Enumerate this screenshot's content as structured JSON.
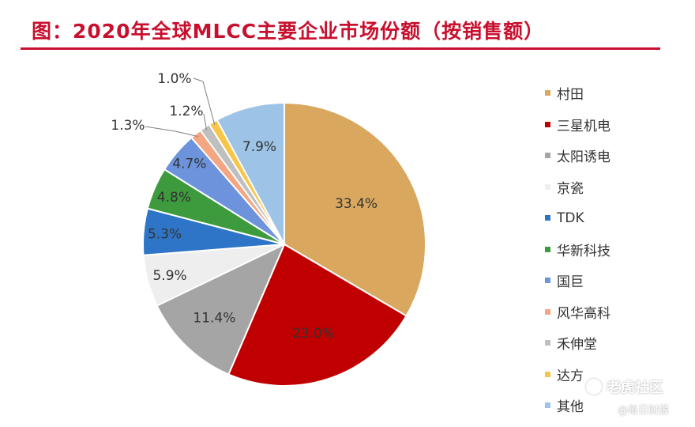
{
  "title": "图：2020年全球MLCC主要企业市场份额（按销售额）",
  "chart_data": {
    "type": "pie",
    "title": "图：2020年全球MLCC主要企业市场份额（按销售额）",
    "unit": "%",
    "slices": [
      {
        "label": "村田",
        "value": 33.4,
        "value_label": "33.4%",
        "color": "#d9a85e"
      },
      {
        "label": "三星机电",
        "value": 23.0,
        "value_label": "23.0%",
        "color": "#c00000"
      },
      {
        "label": "太阳诱电",
        "value": 11.4,
        "value_label": "11.4%",
        "color": "#a5a5a5"
      },
      {
        "label": "京瓷",
        "value": 5.9,
        "value_label": "5.9%",
        "color": "#eeeeee"
      },
      {
        "label": "TDK",
        "value": 5.3,
        "value_label": "5.3%",
        "color": "#2e75c8"
      },
      {
        "label": "华新科技",
        "value": 4.8,
        "value_label": "4.8%",
        "color": "#3d9a3d"
      },
      {
        "label": "国巨",
        "value": 4.7,
        "value_label": "4.7%",
        "color": "#6c93db"
      },
      {
        "label": "风华高科",
        "value": 1.3,
        "value_label": "1.3%",
        "color": "#f4a582"
      },
      {
        "label": "禾伸堂",
        "value": 1.2,
        "value_label": "1.2%",
        "color": "#bfbfbf"
      },
      {
        "label": "达方",
        "value": 1.0,
        "value_label": "1.0%",
        "color": "#f7c648"
      },
      {
        "label": "其他",
        "value": 7.9,
        "value_label": "7.9%",
        "color": "#9dc3e6"
      }
    ],
    "start_angle": "12 o'clock",
    "direction": "clockwise",
    "legend_position": "right"
  },
  "watermark": {
    "brand": "老虎社区",
    "source": "@每日财报"
  }
}
